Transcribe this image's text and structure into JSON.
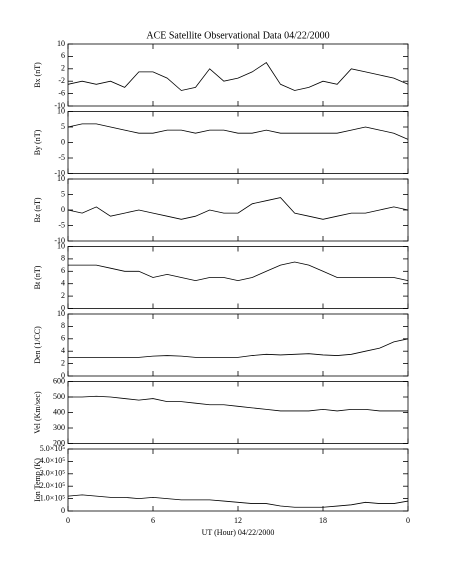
{
  "chart_data": [
    {
      "type": "line",
      "title": "ACE Satellite Observational Data   04/22/2000",
      "ylabel": "Bx (nT)",
      "x": [
        0,
        1,
        2,
        3,
        4,
        5,
        6,
        7,
        8,
        9,
        10,
        11,
        12,
        13,
        14,
        15,
        16,
        17,
        18,
        19,
        20,
        21,
        22,
        23,
        24
      ],
      "values": [
        -3,
        -2,
        -3,
        -2,
        -4,
        1,
        1,
        -1,
        -5,
        -4,
        2,
        -2,
        -1,
        1,
        4,
        -3,
        -5,
        -4,
        -2,
        -3,
        2,
        1,
        0,
        -1,
        -3
      ],
      "color": "#000000",
      "xlim": [
        0,
        24
      ],
      "ylim": [
        -10,
        10
      ],
      "yticks": [
        -10,
        -6,
        -2,
        2,
        6,
        10
      ]
    },
    {
      "type": "line",
      "ylabel": "By (nT)",
      "x": [
        0,
        1,
        2,
        3,
        4,
        5,
        6,
        7,
        8,
        9,
        10,
        11,
        12,
        13,
        14,
        15,
        16,
        17,
        18,
        19,
        20,
        21,
        22,
        23,
        24
      ],
      "values": [
        5,
        6,
        6,
        5,
        4,
        3,
        3,
        4,
        4,
        3,
        4,
        4,
        3,
        3,
        4,
        3,
        3,
        3,
        3,
        3,
        4,
        5,
        4,
        3,
        1
      ],
      "color": "#000000",
      "xlim": [
        0,
        24
      ],
      "ylim": [
        -10,
        10
      ],
      "yticks": [
        -10,
        -5,
        0,
        5,
        10
      ]
    },
    {
      "type": "line",
      "ylabel": "Bz (nT)",
      "x": [
        0,
        1,
        2,
        3,
        4,
        5,
        6,
        7,
        8,
        9,
        10,
        11,
        12,
        13,
        14,
        15,
        16,
        17,
        18,
        19,
        20,
        21,
        22,
        23,
        24
      ],
      "values": [
        0,
        -1,
        1,
        -2,
        -1,
        0,
        -1,
        -2,
        -3,
        -2,
        0,
        -1,
        -1,
        2,
        3,
        4,
        -1,
        -2,
        -3,
        -2,
        -1,
        -1,
        0,
        1,
        0
      ],
      "color": "#000000",
      "xlim": [
        0,
        24
      ],
      "ylim": [
        -10,
        10
      ],
      "yticks": [
        -10,
        -5,
        0,
        5,
        10
      ]
    },
    {
      "type": "line",
      "ylabel": "Bt (nT)",
      "x": [
        0,
        1,
        2,
        3,
        4,
        5,
        6,
        7,
        8,
        9,
        10,
        11,
        12,
        13,
        14,
        15,
        16,
        17,
        18,
        19,
        20,
        21,
        22,
        23,
        24
      ],
      "values": [
        7,
        7,
        7,
        6.5,
        6,
        6,
        5,
        5.5,
        5,
        4.5,
        5,
        5,
        4.5,
        5,
        6,
        7,
        7.5,
        7,
        6,
        5,
        5,
        5,
        5,
        5,
        4.5
      ],
      "color": "#000000",
      "xlim": [
        0,
        24
      ],
      "ylim": [
        0,
        10
      ],
      "yticks": [
        0,
        2,
        4,
        6,
        8,
        10
      ]
    },
    {
      "type": "line",
      "ylabel": "Den (1/CC)",
      "x": [
        0,
        1,
        2,
        3,
        4,
        5,
        6,
        7,
        8,
        9,
        10,
        11,
        12,
        13,
        14,
        15,
        16,
        17,
        18,
        19,
        20,
        21,
        22,
        23,
        24
      ],
      "values": [
        3,
        3,
        3,
        3,
        3,
        3,
        3.2,
        3.3,
        3.2,
        3,
        3,
        3,
        3,
        3.3,
        3.5,
        3.4,
        3.5,
        3.6,
        3.4,
        3.3,
        3.5,
        4,
        4.5,
        5.5,
        6
      ],
      "color": "#000000",
      "xlim": [
        0,
        24
      ],
      "ylim": [
        0,
        10
      ],
      "yticks": [
        0,
        2,
        4,
        6,
        8,
        10
      ]
    },
    {
      "type": "line",
      "ylabel": "Vel (Km/sec)",
      "x": [
        0,
        1,
        2,
        3,
        4,
        5,
        6,
        7,
        8,
        9,
        10,
        11,
        12,
        13,
        14,
        15,
        16,
        17,
        18,
        19,
        20,
        21,
        22,
        23,
        24
      ],
      "values": [
        500,
        500,
        505,
        500,
        490,
        480,
        490,
        470,
        470,
        460,
        450,
        450,
        440,
        430,
        420,
        410,
        410,
        410,
        420,
        410,
        420,
        420,
        410,
        410,
        410
      ],
      "color": "#000000",
      "xlim": [
        0,
        24
      ],
      "ylim": [
        200,
        600
      ],
      "yticks": [
        200,
        300,
        400,
        500,
        600
      ]
    },
    {
      "type": "line",
      "ylabel": "Ion Temp (K)",
      "xlabel": "UT (Hour)   04/22/2000",
      "x": [
        0,
        1,
        2,
        3,
        4,
        5,
        6,
        7,
        8,
        9,
        10,
        11,
        12,
        13,
        14,
        15,
        16,
        17,
        18,
        19,
        20,
        21,
        22,
        23,
        24
      ],
      "values": [
        120000,
        130000,
        120000,
        110000,
        110000,
        100000,
        110000,
        100000,
        90000,
        90000,
        90000,
        80000,
        70000,
        60000,
        60000,
        40000,
        30000,
        30000,
        30000,
        40000,
        50000,
        70000,
        60000,
        60000,
        80000
      ],
      "color": "#000000",
      "xlim": [
        0,
        24
      ],
      "ylim": [
        0,
        500000
      ],
      "yticks": [
        0,
        {
          "value": 100000,
          "label": "1.0×10⁵"
        },
        {
          "value": 200000,
          "label": "2.0×10⁵"
        },
        {
          "value": 300000,
          "label": "3.0×10⁵"
        },
        {
          "value": 400000,
          "label": "4.0×10⁵"
        },
        {
          "value": 500000,
          "label": "5.0×10⁵"
        }
      ],
      "xticks": [
        0,
        6,
        12,
        18,
        {
          "value": 24,
          "label": "0"
        }
      ]
    }
  ]
}
